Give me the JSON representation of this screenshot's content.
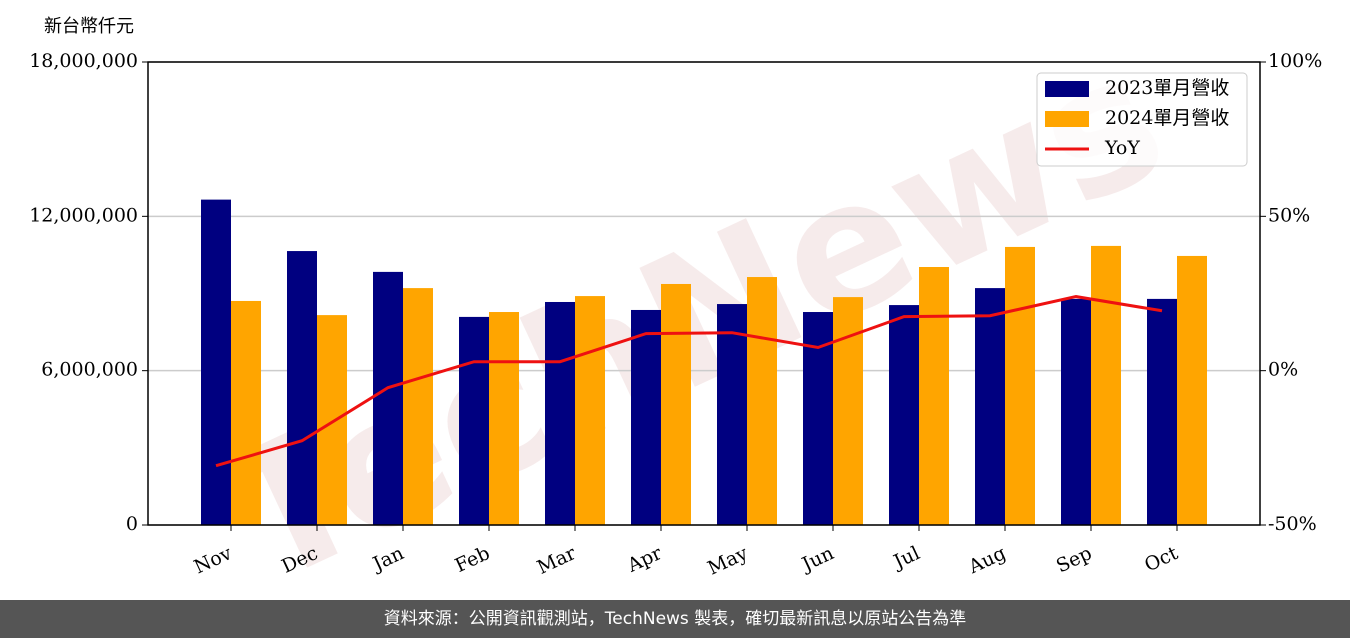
{
  "chart_data": {
    "type": "bar-line",
    "unit_label": "新台幣仟元",
    "watermark": "TechNews",
    "categories": [
      "Nov",
      "Dec",
      "Jan",
      "Feb",
      "Mar",
      "Apr",
      "May",
      "Jun",
      "Jul",
      "Aug",
      "Sep",
      "Oct"
    ],
    "series": [
      {
        "name": "2023單月營收",
        "color": "#000080",
        "values": [
          12650000,
          10650000,
          9840000,
          8090000,
          8670000,
          8360000,
          8590000,
          8280000,
          8550000,
          9210000,
          8790000,
          8790000
        ]
      },
      {
        "name": "2024單月營收",
        "color": "#FFA500",
        "values": [
          8710000,
          8160000,
          9210000,
          8280000,
          8900000,
          9370000,
          9640000,
          8860000,
          10030000,
          10810000,
          10850000,
          10460000
        ]
      },
      {
        "name": "YoY",
        "color": "#ee1111",
        "axis": "y2",
        "values": [
          -30.8,
          -22.7,
          -5.5,
          2.9,
          2.9,
          12.0,
          12.3,
          7.5,
          17.5,
          17.8,
          24.0,
          19.4
        ]
      }
    ],
    "ylim": [
      0,
      18000000
    ],
    "yticks": [
      {
        "value": 0,
        "label": "0"
      },
      {
        "value": 6000000,
        "label": "6,000,000"
      },
      {
        "value": 12000000,
        "label": "12,000,000"
      },
      {
        "value": 18000000,
        "label": "18,000,000"
      }
    ],
    "y2lim": [
      -50,
      100
    ],
    "y2ticks": [
      {
        "value": -50,
        "label": "-50%"
      },
      {
        "value": 0,
        "label": "0%"
      },
      {
        "value": 50,
        "label": "50%"
      },
      {
        "value": 100,
        "label": "100%"
      }
    ],
    "grid": true,
    "legend": "upper right"
  },
  "footer": "資料來源：公開資訊觀測站，TechNews 製表，確切最新訊息以原站公告為準"
}
